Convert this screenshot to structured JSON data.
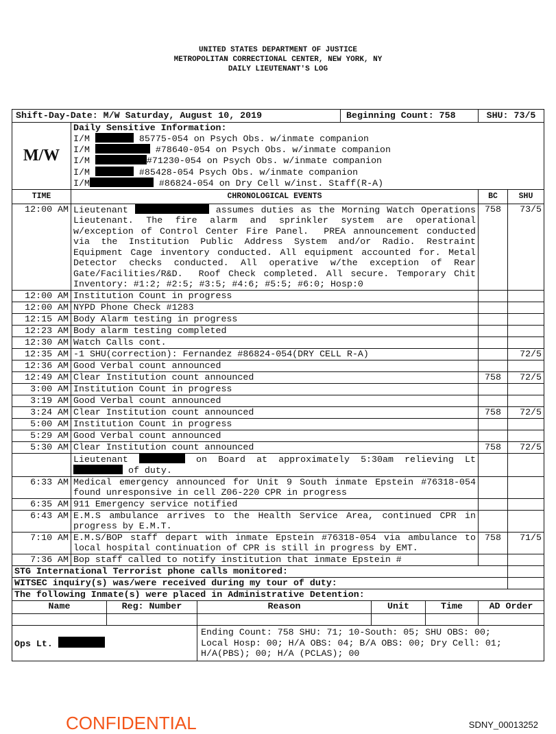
{
  "header": {
    "line1": "UNITED STATES DEPARTMENT OF JUSTICE",
    "line2": "METROPOLITAN CORRECTIONAL CENTER, NEW YORK, NY",
    "line3": "DAILY LIEUTENANT'S LOG"
  },
  "top_row": {
    "shift_day_date": "Shift-Day-Date: M/W Saturday, August 10, 2019",
    "beginning_count": "Beginning Count: 758",
    "shu": "SHU: 73/5"
  },
  "sensitive": {
    "shift_label": "M/W",
    "title": "Daily Sensitive Information:",
    "lines": [
      [
        {
          "text": "I/M "
        },
        {
          "redacted": true
        },
        {
          "text": " 85775-054 on Psych Obs. w/inmate companion"
        }
      ],
      [
        {
          "text": "I/M "
        },
        {
          "redacted": true
        },
        {
          "text": " #78640-054 on Psych Obs. w/inmate companion"
        }
      ],
      [
        {
          "text": "I/M "
        },
        {
          "redacted": true
        },
        {
          "text": "#71230-054 on Psych Obs. w/inmate companion"
        }
      ],
      [
        {
          "text": "I/M "
        },
        {
          "redacted": true
        },
        {
          "text": " #85428-054 Psych Obs. w/inmate companion"
        }
      ],
      [
        {
          "text": "I/M"
        },
        {
          "redacted": true
        },
        {
          "text": " #86824-054 on Dry Cell w/inst. Staff(R-A)"
        }
      ]
    ]
  },
  "columns": {
    "time": "TIME",
    "events": "CHRONOLOGICAL EVENTS",
    "bc": "BC",
    "shu": "SHU"
  },
  "events": [
    {
      "time": "12:00 AM",
      "justify": true,
      "segments": [
        {
          "text": "Lieutenant "
        },
        {
          "redacted": true
        },
        {
          "text": " assumes duties as the Morning Watch Operations Lieutenant. The fire alarm and sprinkler system are operational w/exception of Control Center Fire Panel.  PREA announcement conducted via the Institution Public Address System and/or Radio. Restraint Equipment Cage inventory conducted. All equipment accounted for. Metal Detector checks conducted. All operative w/the exception of Rear Gate/Facilities/R&D.  Roof Check completed. All secure. Temporary Chit Inventory: #1:2; #2:5; #3:5; #4:6; #5:5; #6:0; Hosp:0"
        }
      ],
      "bc": "758",
      "shu": "73/5"
    },
    {
      "time": "12:00 AM",
      "segments": [
        {
          "text": "Institution Count in progress"
        }
      ],
      "bc": "",
      "shu": ""
    },
    {
      "time": "12:00 AM",
      "segments": [
        {
          "text": "NYPD Phone Check #1283"
        }
      ],
      "bc": "",
      "shu": ""
    },
    {
      "time": "12:15 AM",
      "segments": [
        {
          "text": "Body Alarm testing in progress"
        }
      ],
      "bc": "",
      "shu": ""
    },
    {
      "time": "12:23 AM",
      "segments": [
        {
          "text": "Body alarm testing completed"
        }
      ],
      "bc": "",
      "shu": ""
    },
    {
      "time": "12:30 AM",
      "segments": [
        {
          "text": "Watch Calls cont."
        }
      ],
      "bc": "",
      "shu": ""
    },
    {
      "time": "12:35 AM",
      "segments": [
        {
          "text": "-1 SHU(correction): Fernandez #86824-054(DRY CELL R-A)"
        }
      ],
      "bc": "",
      "shu": "72/5"
    },
    {
      "time": "12:36 AM",
      "segments": [
        {
          "text": "Good Verbal count announced"
        }
      ],
      "bc": "",
      "shu": ""
    },
    {
      "time": "12:49 AM",
      "segments": [
        {
          "text": "Clear Institution count announced"
        }
      ],
      "bc": "758",
      "shu": "72/5"
    },
    {
      "time": "3:00 AM",
      "segments": [
        {
          "text": "Institution Count in progress"
        }
      ],
      "bc": "",
      "shu": ""
    },
    {
      "time": "3:19 AM",
      "segments": [
        {
          "text": "Good Verbal count announced"
        }
      ],
      "bc": "",
      "shu": ""
    },
    {
      "time": "3:24 AM",
      "segments": [
        {
          "text": "Clear Institution count announced"
        }
      ],
      "bc": "758",
      "shu": "72/5"
    },
    {
      "time": "5:00 AM",
      "segments": [
        {
          "text": "Institution Count in progress"
        }
      ],
      "bc": "",
      "shu": ""
    },
    {
      "time": "5:29 AM",
      "segments": [
        {
          "text": "Good Verbal count announced"
        }
      ],
      "bc": "",
      "shu": ""
    },
    {
      "time": "5:30 AM",
      "segments": [
        {
          "text": "Clear Institution count announced"
        }
      ],
      "bc": "758",
      "shu": "72/5"
    },
    {
      "time": "",
      "justify": true,
      "segments": [
        {
          "text": "Lieutenant "
        },
        {
          "redacted": true
        },
        {
          "text": " on Board at approximately 5:30am relieving Lt "
        },
        {
          "redacted": true
        },
        {
          "text": " of duty."
        }
      ],
      "bc": "",
      "shu": ""
    },
    {
      "time": "6:33 AM",
      "justify": true,
      "segments": [
        {
          "text": "Medical emergency announced for Unit 9 South inmate Epstein #76318-054 found unresponsive in cell Z06-220 CPR in progress"
        }
      ],
      "bc": "",
      "shu": ""
    },
    {
      "time": "6:35 AM",
      "segments": [
        {
          "text": "911 Emergency service notified"
        }
      ],
      "bc": "",
      "shu": ""
    },
    {
      "time": "6:43 AM",
      "justify": true,
      "segments": [
        {
          "text": "E.M.S ambulance arrives to the Health Service Area, continued CPR in progress by E.M.T."
        }
      ],
      "bc": "",
      "shu": ""
    },
    {
      "time": "7:10 AM",
      "justify": true,
      "segments": [
        {
          "text": "E.M.S/BOP staff depart with inmate Epstein #76318-054 via ambulance to local hospital continuation of CPR is still in progress by EMT."
        }
      ],
      "bc": "758",
      "shu": "71/5"
    },
    {
      "time": "7:36 AM",
      "segments": [
        {
          "text": "Bop staff called to notify institution that inmate Epstein #"
        }
      ],
      "bc": "",
      "shu": ""
    }
  ],
  "footer_rows": {
    "stg": "STG International Terrorist phone calls monitored:",
    "witsec": "WITSEC inquiry(s) was/were received during my tour of duty:",
    "ad_intro": "The following Inmate(s) were placed in Administrative Detention:"
  },
  "ad_columns": [
    "Name",
    "Reg: Number",
    "Reason",
    "Unit",
    "Time",
    "AD Order"
  ],
  "closing": {
    "ops_label": "Ops Lt.",
    "ending_lines": [
      "Ending Count: 758 SHU: 71; 10-South: 05; SHU OBS: 00;",
      "Local Hosp: 00; H/A OBS: 04; B/A OBS: 00; Dry Cell: 01;",
      "H/A(PBS); 00; H/A (PCLAS); 00"
    ]
  },
  "stamps": {
    "confidential": "CONFIDENTIAL",
    "bates": "SDNY_00013252"
  },
  "colors": {
    "confidential": "#f4561a",
    "redaction": "#000000"
  }
}
